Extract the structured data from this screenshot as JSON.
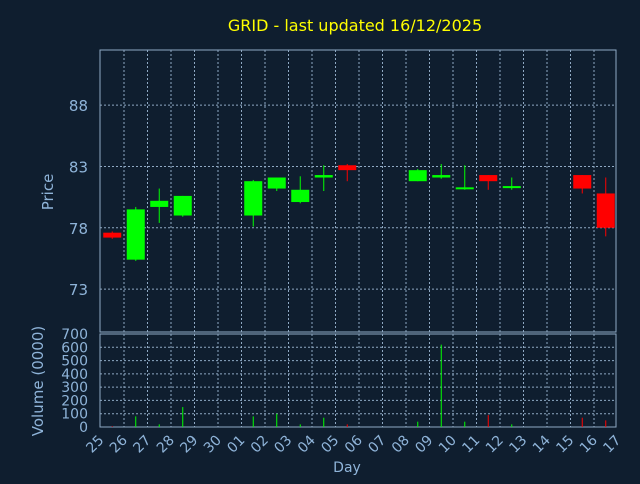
{
  "title": "GRID - last updated 16/12/2025",
  "colors": {
    "background": "#0f1e2f",
    "title": "#ffff00",
    "axis_text": "#8fb4d9",
    "grid": "#8fa9c4",
    "up": "#00ff00",
    "down": "#ff0000"
  },
  "chart_data": [
    {
      "type": "candlestick",
      "ylabel": "Price",
      "ylim": [
        69.5,
        92.5
      ],
      "yticks": [
        73,
        78,
        83,
        88
      ],
      "grid": true,
      "categories": [
        "25",
        "26",
        "27",
        "28",
        "29",
        "30",
        "01",
        "02",
        "03",
        "04",
        "05",
        "06",
        "07",
        "08",
        "09",
        "10",
        "11",
        "12",
        "13",
        "14",
        "15",
        "16",
        "17"
      ],
      "candles": [
        {
          "day": "25",
          "open": 77.6,
          "close": 77.2,
          "high": 77.7,
          "low": 77.1
        },
        {
          "day": "26",
          "open": 75.4,
          "close": 79.5,
          "high": 79.7,
          "low": 75.3
        },
        {
          "day": "27",
          "open": 79.7,
          "close": 80.2,
          "high": 81.2,
          "low": 78.4
        },
        {
          "day": "28",
          "open": 79.0,
          "close": 80.6,
          "high": 80.6,
          "low": 78.9
        },
        {
          "day": "01",
          "open": 79.0,
          "close": 81.8,
          "high": 81.9,
          "low": 78.1
        },
        {
          "day": "02",
          "open": 81.2,
          "close": 82.1,
          "high": 82.1,
          "low": 81.0
        },
        {
          "day": "03",
          "open": 80.1,
          "close": 81.1,
          "high": 82.2,
          "low": 80.0
        },
        {
          "day": "04",
          "open": 82.1,
          "close": 82.3,
          "high": 83.1,
          "low": 81.0
        },
        {
          "day": "05",
          "open": 83.1,
          "close": 82.7,
          "high": 83.2,
          "low": 81.8
        },
        {
          "day": "08",
          "open": 81.8,
          "close": 82.7,
          "high": 82.8,
          "low": 81.8
        },
        {
          "day": "09",
          "open": 82.1,
          "close": 82.3,
          "high": 83.2,
          "low": 82.0
        },
        {
          "day": "10",
          "open": 81.2,
          "close": 81.3,
          "high": 83.1,
          "low": 81.1
        },
        {
          "day": "11",
          "open": 82.3,
          "close": 81.8,
          "high": 82.3,
          "low": 81.1
        },
        {
          "day": "12",
          "open": 81.3,
          "close": 81.4,
          "high": 82.1,
          "low": 81.1
        },
        {
          "day": "15",
          "open": 82.3,
          "close": 81.2,
          "high": 82.3,
          "low": 80.8
        },
        {
          "day": "16",
          "open": 80.8,
          "close": 78.0,
          "high": 82.1,
          "low": 77.3
        }
      ]
    },
    {
      "type": "bar",
      "xlabel": "Day",
      "ylabel": "Volume (0000)",
      "ylim": [
        0,
        700
      ],
      "yticks": [
        0,
        100,
        200,
        300,
        400,
        500,
        600,
        700
      ],
      "grid": true,
      "categories": [
        "25",
        "26",
        "27",
        "28",
        "29",
        "30",
        "01",
        "02",
        "03",
        "04",
        "05",
        "06",
        "07",
        "08",
        "09",
        "10",
        "11",
        "12",
        "13",
        "14",
        "15",
        "16",
        "17"
      ],
      "values": [
        5,
        80,
        20,
        150,
        0,
        0,
        80,
        100,
        20,
        70,
        20,
        0,
        0,
        40,
        620,
        40,
        90,
        20,
        0,
        0,
        70,
        50,
        0
      ]
    }
  ]
}
